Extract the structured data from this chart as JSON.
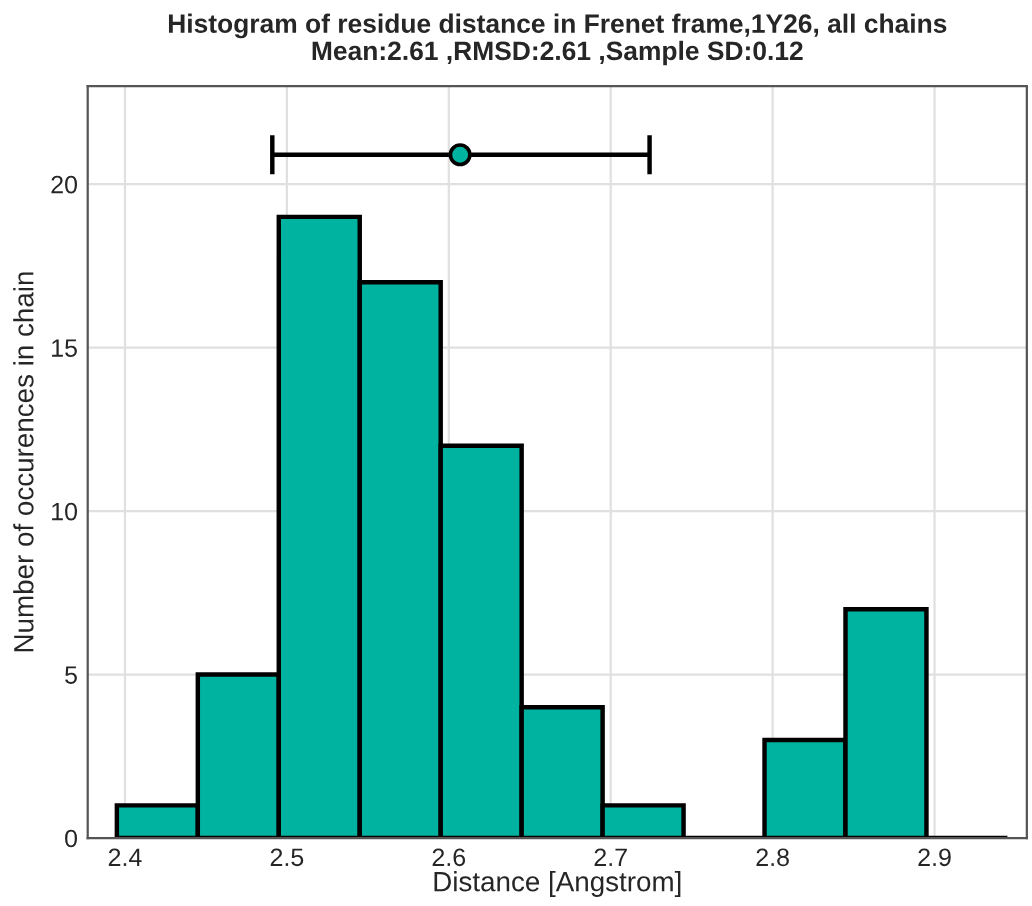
{
  "chart_data": {
    "type": "histogram",
    "title": "Histogram of residue distance in Frenet frame,1Y26, all chains",
    "subtitle": "Mean:2.61 ,RMSD:2.61 ,Sample SD:0.12",
    "xlabel": "Distance [Angstrom]",
    "ylabel": "Number of occurences in chain",
    "bins": [
      2.395,
      2.445,
      2.495,
      2.545,
      2.595,
      2.645,
      2.695,
      2.745,
      2.795,
      2.845,
      2.895,
      2.945
    ],
    "values": [
      1,
      5,
      19,
      17,
      12,
      4,
      1,
      0,
      3,
      7,
      0
    ],
    "color": "#00b3a0",
    "series": [
      {
        "type": "scatter",
        "color": "#00b3a0",
        "x": [
          2.607
        ],
        "values": [
          20.9
        ],
        "xerrors": [
          [
            2.491,
            2.724
          ]
        ]
      }
    ],
    "xlim": [
      2.377,
      2.957
    ],
    "ylim": [
      0,
      23
    ],
    "xticks": [
      2.4,
      2.5,
      2.6,
      2.7,
      2.8,
      2.9
    ],
    "yticks": [
      0,
      5,
      10,
      15,
      20
    ],
    "grid": true,
    "marker": "circle"
  }
}
